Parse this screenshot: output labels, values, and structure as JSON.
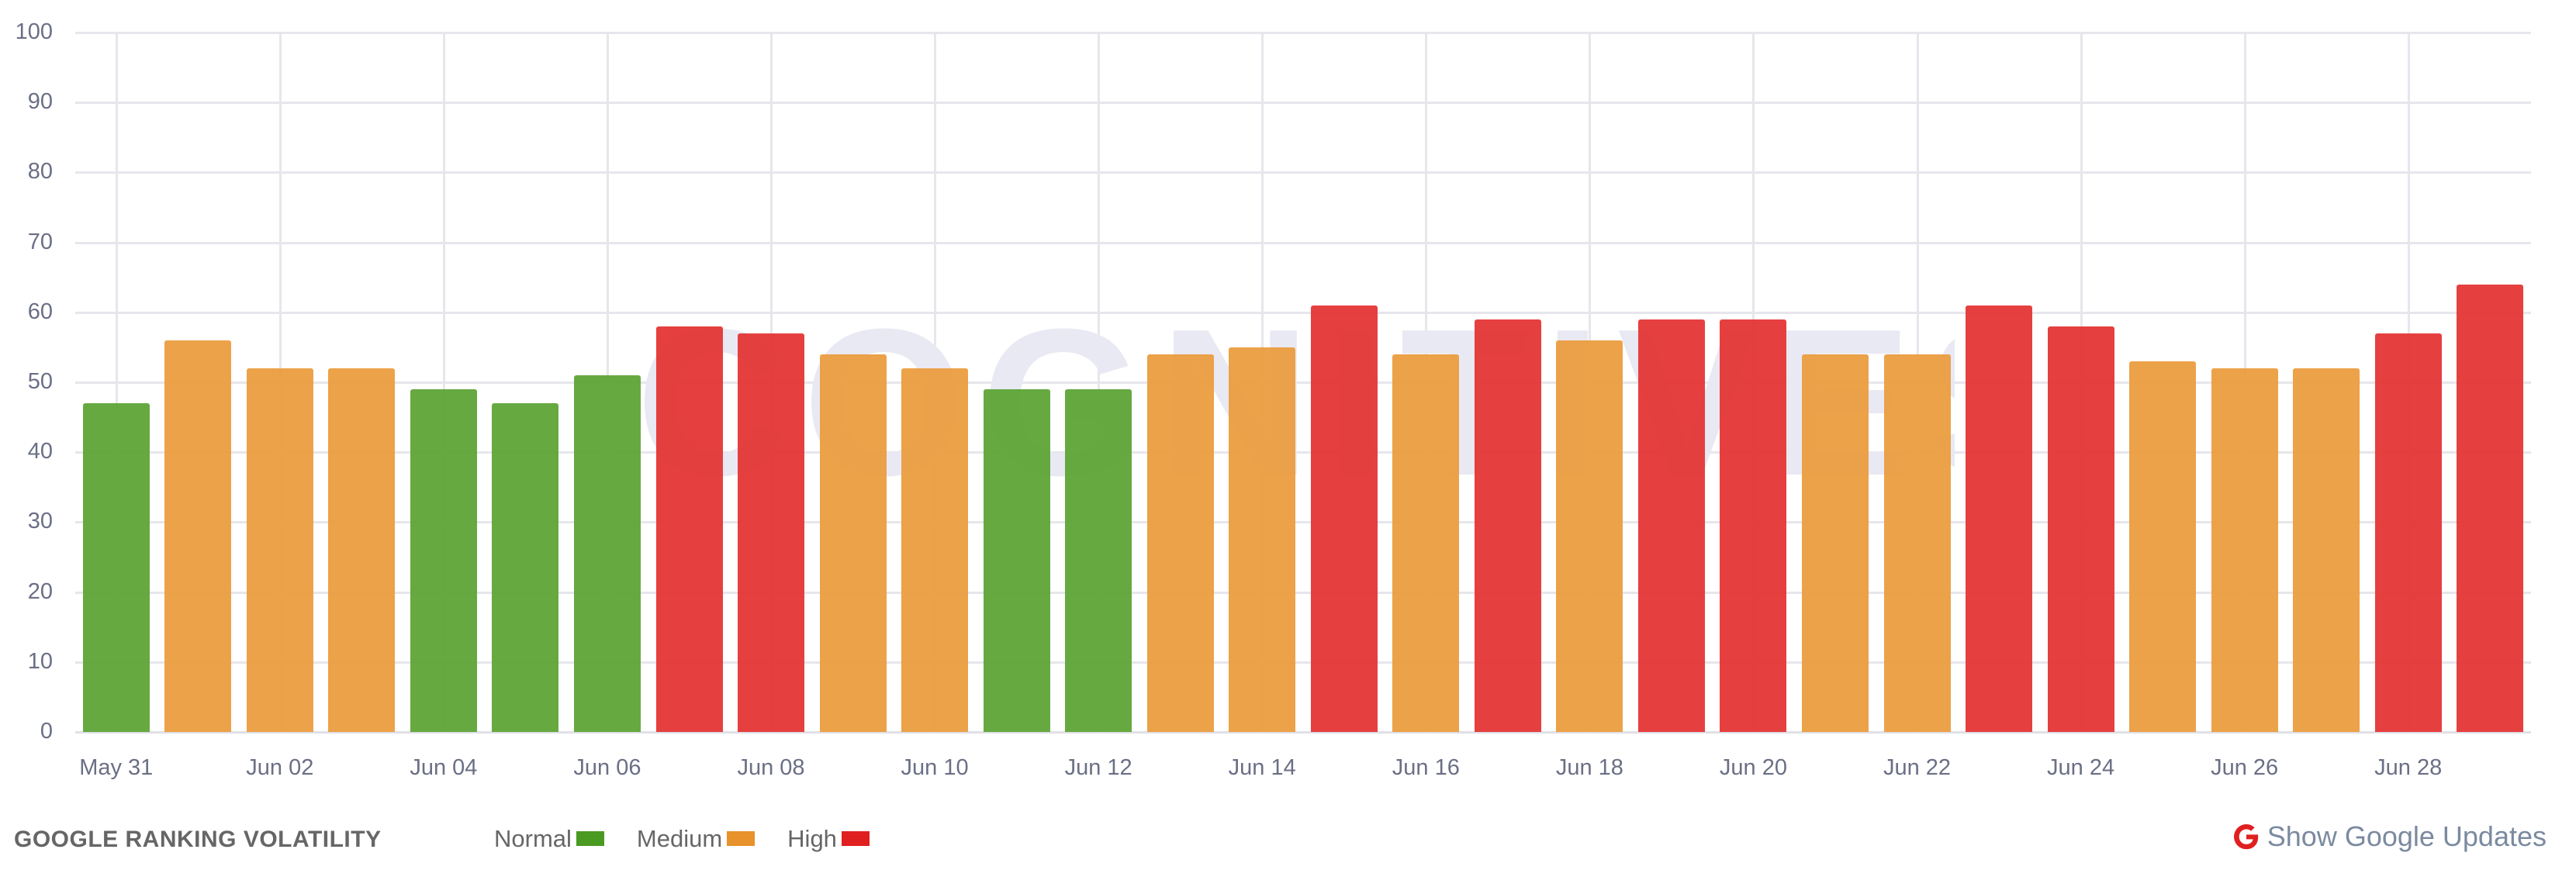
{
  "footer": {
    "title": "GOOGLE RANKING VOLATILITY",
    "legend": [
      {
        "label": "Normal",
        "color": "#4a9a22"
      },
      {
        "label": "Medium",
        "color": "#e8922b"
      },
      {
        "label": "High",
        "color": "#e02020"
      }
    ],
    "google_updates_label": "Show Google Updates",
    "google_updates_icon": "google-g-icon"
  },
  "watermark": "COGNITIVESEO",
  "colors": {
    "normal": "#5aa332",
    "medium": "#eb9b3b",
    "high": "#e33230",
    "grid": "#e6e6ec",
    "axis_text": "#6b6f85"
  },
  "chart_data": {
    "type": "bar",
    "title": "GOOGLE RANKING VOLATILITY",
    "xlabel": "",
    "ylabel": "",
    "ylim": [
      0,
      100
    ],
    "yticks": [
      0,
      10,
      20,
      30,
      40,
      50,
      60,
      70,
      80,
      90,
      100
    ],
    "grid": true,
    "legend_position": "bottom",
    "categories": [
      "May 31",
      "Jun 01",
      "Jun 02",
      "Jun 03",
      "Jun 04",
      "Jun 05",
      "Jun 06",
      "Jun 07",
      "Jun 08",
      "Jun 09",
      "Jun 10",
      "Jun 11",
      "Jun 12",
      "Jun 13",
      "Jun 14",
      "Jun 15",
      "Jun 16",
      "Jun 17",
      "Jun 18",
      "Jun 19",
      "Jun 20",
      "Jun 21",
      "Jun 22",
      "Jun 23",
      "Jun 24",
      "Jun 25",
      "Jun 26",
      "Jun 27",
      "Jun 28",
      "Jun 29"
    ],
    "xtick_labels": [
      "May 31",
      "Jun 02",
      "Jun 04",
      "Jun 06",
      "Jun 08",
      "Jun 10",
      "Jun 12",
      "Jun 14",
      "Jun 16",
      "Jun 18",
      "Jun 20",
      "Jun 22",
      "Jun 24",
      "Jun 26",
      "Jun 28"
    ],
    "values": [
      47,
      56,
      52,
      52,
      49,
      47,
      51,
      58,
      57,
      54,
      52,
      49,
      49,
      54,
      55,
      61,
      54,
      59,
      56,
      59,
      59,
      54,
      54,
      61,
      58,
      53,
      52,
      52,
      57,
      64
    ],
    "levels": [
      "Normal",
      "Medium",
      "Medium",
      "Medium",
      "Normal",
      "Normal",
      "Normal",
      "High",
      "High",
      "Medium",
      "Medium",
      "Normal",
      "Normal",
      "Medium",
      "Medium",
      "High",
      "Medium",
      "High",
      "Medium",
      "High",
      "High",
      "Medium",
      "Medium",
      "High",
      "High",
      "Medium",
      "Medium",
      "Medium",
      "High",
      "High"
    ],
    "series": [
      {
        "name": "Normal",
        "color": "#4a9a22"
      },
      {
        "name": "Medium",
        "color": "#e8922b"
      },
      {
        "name": "High",
        "color": "#e02020"
      }
    ]
  }
}
